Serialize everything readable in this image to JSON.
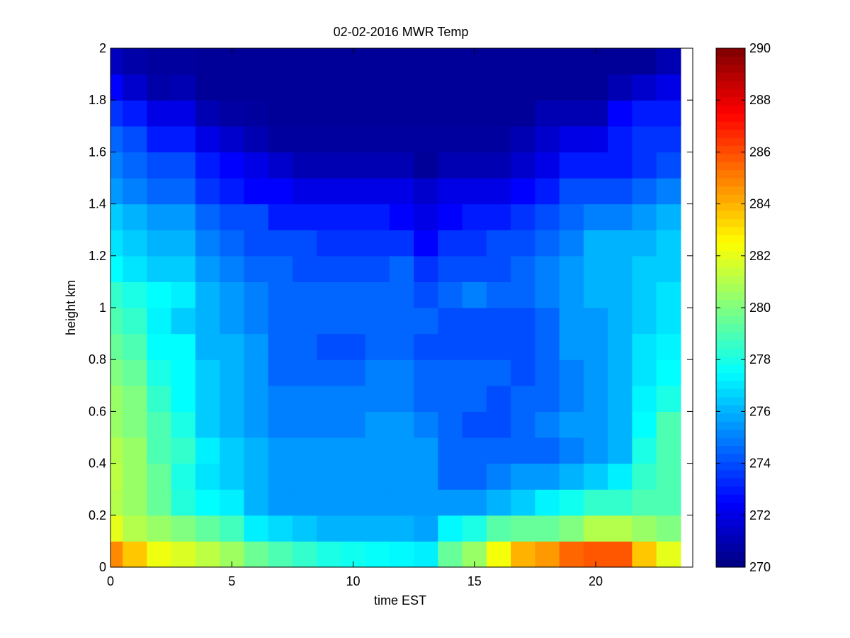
{
  "chart_data": {
    "type": "heatmap",
    "title": "02-02-2016 MWR Temp",
    "xlabel": "time EST",
    "ylabel": "height km",
    "xlim": [
      0,
      24
    ],
    "ylim": [
      0,
      2
    ],
    "x_ticks": [
      "0",
      "5",
      "10",
      "15",
      "20"
    ],
    "y_ticks": [
      "0",
      "0.2",
      "0.4",
      "0.6",
      "0.8",
      "1",
      "1.2",
      "1.4",
      "1.6",
      "1.8",
      "2"
    ],
    "colorbar": {
      "colormap": "jet",
      "range": [
        270,
        290
      ],
      "ticks": [
        "270",
        "272",
        "274",
        "276",
        "278",
        "280",
        "282",
        "284",
        "286",
        "288",
        "290"
      ]
    },
    "x": [
      0,
      1,
      2,
      3,
      4,
      5,
      6,
      7,
      8,
      9,
      10,
      11,
      12,
      13,
      14,
      15,
      16,
      17,
      18,
      19,
      20,
      21,
      22,
      23
    ],
    "heights_km": [
      0,
      0.1,
      0.2,
      0.3,
      0.4,
      0.5,
      0.6,
      0.7,
      0.8,
      0.9,
      1.0,
      1.1,
      1.2,
      1.3,
      1.4,
      1.5,
      1.6,
      1.7,
      1.8,
      1.9
    ],
    "temps_K": [
      [
        284.8,
        283.6,
        282.2,
        281.8,
        281.2,
        280.6,
        279.6,
        279.0,
        278.5,
        278.0,
        277.8,
        277.6,
        277.4,
        277.2,
        279.5,
        280.5,
        282.3,
        284.0,
        284.5,
        285.5,
        285.8,
        285.8,
        283.6,
        282.0
      ],
      [
        282.0,
        281.0,
        280.5,
        280.0,
        279.4,
        278.8,
        277.2,
        276.8,
        276.4,
        276.0,
        276.0,
        276.0,
        276.0,
        275.7,
        277.4,
        278.0,
        279.2,
        279.5,
        279.5,
        280.0,
        281.0,
        281.0,
        280.5,
        280.0
      ],
      [
        281.0,
        280.5,
        279.5,
        278.2,
        277.5,
        277.2,
        276.0,
        275.5,
        275.5,
        275.5,
        275.5,
        275.5,
        275.5,
        275.5,
        275.5,
        275.5,
        276.0,
        276.5,
        277.3,
        277.8,
        278.5,
        278.5,
        279.0,
        279.0
      ],
      [
        281.2,
        280.5,
        279.5,
        278.0,
        277.0,
        276.5,
        276.0,
        275.5,
        275.5,
        275.5,
        275.5,
        275.5,
        275.5,
        275.5,
        274.5,
        274.5,
        275.0,
        275.5,
        275.5,
        276.0,
        276.5,
        277.2,
        278.5,
        279.0
      ],
      [
        281.0,
        280.5,
        279.0,
        278.5,
        277.2,
        276.5,
        276.0,
        275.5,
        275.5,
        275.5,
        275.5,
        275.5,
        275.5,
        275.5,
        274.5,
        274.5,
        274.5,
        274.5,
        274.5,
        275.0,
        275.5,
        276.0,
        278.0,
        279.0
      ],
      [
        280.5,
        280.0,
        279.0,
        278.0,
        276.5,
        276.0,
        275.5,
        275.0,
        275.0,
        275.0,
        275.0,
        275.5,
        275.5,
        275.0,
        274.5,
        274.0,
        274.0,
        274.5,
        275.0,
        275.5,
        275.5,
        276.0,
        277.5,
        279.0
      ],
      [
        280.5,
        280.0,
        278.5,
        277.5,
        276.5,
        276.0,
        275.5,
        275.0,
        275.0,
        275.0,
        275.0,
        275.0,
        275.0,
        274.5,
        274.5,
        274.5,
        274.0,
        274.5,
        274.5,
        275.0,
        275.5,
        276.0,
        277.3,
        278.0
      ],
      [
        280.0,
        279.5,
        278.0,
        277.5,
        276.5,
        276.0,
        275.5,
        274.5,
        274.5,
        274.5,
        274.5,
        275.0,
        275.0,
        274.5,
        274.5,
        274.5,
        274.5,
        274.0,
        274.5,
        275.0,
        275.5,
        276.0,
        277.0,
        277.5
      ],
      [
        279.5,
        279.0,
        277.5,
        277.5,
        276.0,
        276.0,
        275.5,
        274.5,
        274.5,
        274.0,
        274.0,
        274.5,
        274.5,
        274.0,
        274.0,
        274.0,
        274.0,
        274.0,
        274.5,
        275.5,
        275.5,
        276.0,
        277.0,
        277.3
      ],
      [
        279.0,
        278.5,
        277.3,
        276.5,
        276.0,
        275.5,
        275.0,
        274.5,
        274.5,
        274.5,
        274.5,
        274.5,
        274.5,
        274.5,
        274.0,
        274.0,
        274.0,
        274.0,
        274.5,
        275.5,
        275.5,
        276.0,
        276.5,
        277.0
      ],
      [
        278.5,
        278.0,
        277.5,
        277.2,
        276.0,
        275.5,
        275.0,
        274.5,
        274.5,
        274.5,
        274.5,
        274.5,
        274.5,
        274.0,
        274.5,
        275.0,
        274.5,
        274.5,
        275.0,
        275.5,
        276.0,
        276.0,
        276.5,
        277.0
      ],
      [
        277.5,
        277.0,
        276.5,
        276.5,
        275.5,
        275.0,
        274.5,
        274.5,
        274.0,
        274.0,
        274.0,
        274.0,
        274.5,
        273.5,
        274.0,
        274.0,
        274.0,
        274.5,
        275.0,
        275.5,
        276.0,
        276.0,
        276.5,
        276.5
      ],
      [
        277.0,
        276.5,
        276.0,
        276.0,
        275.0,
        274.5,
        274.0,
        274.0,
        274.0,
        273.5,
        273.5,
        273.5,
        273.5,
        272.5,
        273.5,
        273.5,
        274.0,
        274.0,
        274.5,
        275.0,
        276.0,
        276.0,
        276.0,
        276.5
      ],
      [
        276.5,
        276.0,
        275.5,
        275.5,
        274.5,
        274.0,
        274.0,
        273.0,
        273.0,
        273.0,
        273.0,
        273.0,
        272.5,
        272.0,
        272.5,
        273.0,
        273.0,
        273.5,
        274.0,
        274.5,
        275.0,
        275.0,
        275.5,
        276.0
      ],
      [
        275.5,
        275.0,
        274.5,
        274.5,
        273.5,
        273.0,
        272.5,
        272.5,
        272.0,
        272.0,
        272.0,
        272.0,
        272.0,
        271.5,
        272.0,
        272.0,
        272.0,
        272.5,
        273.0,
        274.0,
        274.0,
        274.0,
        274.5,
        275.0
      ],
      [
        275.0,
        274.5,
        274.0,
        274.0,
        273.0,
        272.5,
        272.0,
        271.5,
        271.0,
        271.0,
        271.0,
        271.0,
        271.0,
        270.5,
        271.0,
        271.0,
        271.0,
        271.5,
        272.0,
        273.0,
        273.0,
        273.0,
        273.5,
        274.0
      ],
      [
        274.5,
        274.0,
        273.0,
        273.0,
        272.0,
        271.5,
        271.0,
        270.6,
        270.6,
        270.6,
        270.6,
        270.6,
        270.6,
        270.6,
        270.6,
        270.6,
        270.6,
        271.0,
        271.5,
        272.0,
        272.0,
        273.0,
        273.5,
        273.5
      ],
      [
        273.5,
        273.0,
        272.0,
        272.0,
        271.0,
        270.7,
        270.6,
        270.5,
        270.5,
        270.5,
        270.5,
        270.5,
        270.5,
        270.5,
        270.5,
        270.5,
        270.5,
        270.5,
        271.0,
        271.0,
        271.0,
        272.5,
        273.0,
        273.0
      ],
      [
        272.5,
        271.5,
        270.8,
        271.0,
        270.5,
        270.5,
        270.5,
        270.5,
        270.5,
        270.5,
        270.5,
        270.5,
        270.5,
        270.5,
        270.5,
        270.5,
        270.5,
        270.5,
        270.5,
        270.5,
        270.5,
        271.0,
        271.5,
        272.0
      ],
      [
        271.2,
        270.8,
        270.6,
        270.6,
        270.5,
        270.5,
        270.5,
        270.5,
        270.5,
        270.5,
        270.5,
        270.5,
        270.5,
        270.5,
        270.5,
        270.5,
        270.5,
        270.5,
        270.5,
        270.5,
        270.5,
        270.5,
        270.5,
        271.0
      ]
    ]
  }
}
